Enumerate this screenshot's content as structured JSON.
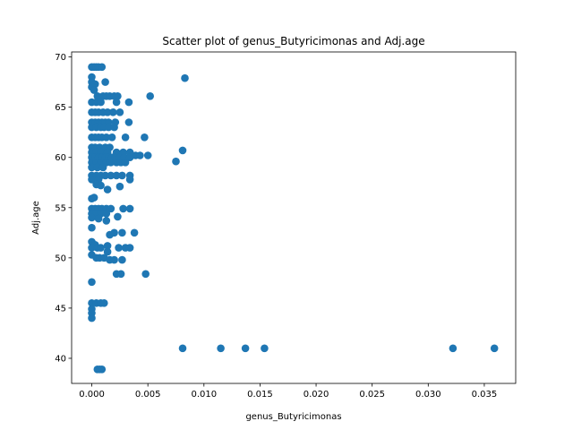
{
  "chart_data": {
    "type": "scatter",
    "title": "Scatter plot of genus_Butyricimonas and Adj.age",
    "xlabel": "genus_Butyricimonas",
    "ylabel": "Adj.age",
    "xlim": [
      -0.0018,
      0.0378
    ],
    "ylim": [
      37.5,
      70.5
    ],
    "xticks": [
      0.0,
      0.005,
      0.01,
      0.015,
      0.02,
      0.025,
      0.03,
      0.035
    ],
    "xtick_labels": [
      "0.000",
      "0.005",
      "0.010",
      "0.015",
      "0.020",
      "0.025",
      "0.030",
      "0.035"
    ],
    "yticks": [
      40,
      45,
      50,
      55,
      60,
      65,
      70
    ],
    "ytick_labels": [
      "40",
      "45",
      "50",
      "55",
      "60",
      "65",
      "70"
    ],
    "color": "#1f77b4",
    "grid": false,
    "points": [
      {
        "x": 0.0,
        "y": 69.0
      },
      {
        "x": 0.0002,
        "y": 69.0
      },
      {
        "x": 0.0004,
        "y": 69.0
      },
      {
        "x": 0.0006,
        "y": 69.0
      },
      {
        "x": 0.0009,
        "y": 69.0
      },
      {
        "x": 0.0,
        "y": 68.0
      },
      {
        "x": 0.0,
        "y": 67.5
      },
      {
        "x": 0.0003,
        "y": 67.3
      },
      {
        "x": 0.0,
        "y": 67.0
      },
      {
        "x": 0.0002,
        "y": 66.7
      },
      {
        "x": 0.0012,
        "y": 67.5
      },
      {
        "x": 0.0005,
        "y": 66.1
      },
      {
        "x": 0.001,
        "y": 66.1
      },
      {
        "x": 0.0013,
        "y": 66.1
      },
      {
        "x": 0.0016,
        "y": 66.1
      },
      {
        "x": 0.002,
        "y": 66.1
      },
      {
        "x": 0.0023,
        "y": 66.1
      },
      {
        "x": 0.0052,
        "y": 66.1
      },
      {
        "x": 0.0083,
        "y": 67.9
      },
      {
        "x": 0.0,
        "y": 65.5
      },
      {
        "x": 0.0004,
        "y": 65.5
      },
      {
        "x": 0.0008,
        "y": 65.5
      },
      {
        "x": 0.0022,
        "y": 65.5
      },
      {
        "x": 0.0033,
        "y": 65.5
      },
      {
        "x": 0.0,
        "y": 64.5
      },
      {
        "x": 0.0003,
        "y": 64.5
      },
      {
        "x": 0.0006,
        "y": 64.5
      },
      {
        "x": 0.001,
        "y": 64.5
      },
      {
        "x": 0.0014,
        "y": 64.5
      },
      {
        "x": 0.0019,
        "y": 64.5
      },
      {
        "x": 0.0025,
        "y": 64.5
      },
      {
        "x": 0.0,
        "y": 63.5
      },
      {
        "x": 0.0003,
        "y": 63.5
      },
      {
        "x": 0.0006,
        "y": 63.5
      },
      {
        "x": 0.0009,
        "y": 63.5
      },
      {
        "x": 0.0012,
        "y": 63.5
      },
      {
        "x": 0.0015,
        "y": 63.5
      },
      {
        "x": 0.0021,
        "y": 63.5
      },
      {
        "x": 0.0033,
        "y": 63.5
      },
      {
        "x": 0.0,
        "y": 63.0
      },
      {
        "x": 0.0004,
        "y": 63.0
      },
      {
        "x": 0.0008,
        "y": 63.0
      },
      {
        "x": 0.0011,
        "y": 63.0
      },
      {
        "x": 0.0015,
        "y": 63.0
      },
      {
        "x": 0.002,
        "y": 63.0
      },
      {
        "x": 0.0,
        "y": 62.0
      },
      {
        "x": 0.0003,
        "y": 62.0
      },
      {
        "x": 0.0006,
        "y": 62.0
      },
      {
        "x": 0.0009,
        "y": 62.0
      },
      {
        "x": 0.0013,
        "y": 62.0
      },
      {
        "x": 0.0018,
        "y": 62.0
      },
      {
        "x": 0.003,
        "y": 62.0
      },
      {
        "x": 0.0047,
        "y": 62.0
      },
      {
        "x": 0.0,
        "y": 61.0
      },
      {
        "x": 0.0003,
        "y": 61.0
      },
      {
        "x": 0.0007,
        "y": 61.0
      },
      {
        "x": 0.0012,
        "y": 61.0
      },
      {
        "x": 0.0016,
        "y": 61.0
      },
      {
        "x": 0.0,
        "y": 60.5
      },
      {
        "x": 0.0004,
        "y": 60.5
      },
      {
        "x": 0.0008,
        "y": 60.5
      },
      {
        "x": 0.0014,
        "y": 60.5
      },
      {
        "x": 0.0022,
        "y": 60.5
      },
      {
        "x": 0.0028,
        "y": 60.5
      },
      {
        "x": 0.0034,
        "y": 60.5
      },
      {
        "x": 0.0081,
        "y": 60.7
      },
      {
        "x": 0.0,
        "y": 60.0
      },
      {
        "x": 0.0003,
        "y": 60.0
      },
      {
        "x": 0.0006,
        "y": 60.0
      },
      {
        "x": 0.0009,
        "y": 60.0
      },
      {
        "x": 0.0012,
        "y": 60.0
      },
      {
        "x": 0.0015,
        "y": 60.0
      },
      {
        "x": 0.0018,
        "y": 60.0
      },
      {
        "x": 0.0021,
        "y": 60.0
      },
      {
        "x": 0.0025,
        "y": 60.0
      },
      {
        "x": 0.0029,
        "y": 60.0
      },
      {
        "x": 0.0034,
        "y": 60.0
      },
      {
        "x": 0.0039,
        "y": 60.2
      },
      {
        "x": 0.0043,
        "y": 60.2
      },
      {
        "x": 0.005,
        "y": 60.2
      },
      {
        "x": 0.0,
        "y": 59.5
      },
      {
        "x": 0.0004,
        "y": 59.5
      },
      {
        "x": 0.0008,
        "y": 59.5
      },
      {
        "x": 0.0013,
        "y": 59.5
      },
      {
        "x": 0.0017,
        "y": 59.5
      },
      {
        "x": 0.0022,
        "y": 59.5
      },
      {
        "x": 0.0026,
        "y": 59.5
      },
      {
        "x": 0.003,
        "y": 59.5
      },
      {
        "x": 0.0075,
        "y": 59.6
      },
      {
        "x": 0.0,
        "y": 59.0
      },
      {
        "x": 0.0005,
        "y": 59.0
      },
      {
        "x": 0.001,
        "y": 59.0
      },
      {
        "x": 0.0,
        "y": 58.2
      },
      {
        "x": 0.0004,
        "y": 58.2
      },
      {
        "x": 0.0008,
        "y": 58.2
      },
      {
        "x": 0.0012,
        "y": 58.2
      },
      {
        "x": 0.0017,
        "y": 58.2
      },
      {
        "x": 0.0022,
        "y": 58.2
      },
      {
        "x": 0.0027,
        "y": 58.2
      },
      {
        "x": 0.0034,
        "y": 58.2
      },
      {
        "x": 0.0,
        "y": 57.8
      },
      {
        "x": 0.0006,
        "y": 57.8
      },
      {
        "x": 0.0034,
        "y": 57.8
      },
      {
        "x": 0.0004,
        "y": 57.3
      },
      {
        "x": 0.0008,
        "y": 57.2
      },
      {
        "x": 0.0014,
        "y": 56.8
      },
      {
        "x": 0.0025,
        "y": 57.1
      },
      {
        "x": 0.0,
        "y": 55.9
      },
      {
        "x": 0.0002,
        "y": 56.0
      },
      {
        "x": 0.0,
        "y": 54.9
      },
      {
        "x": 0.0003,
        "y": 54.9
      },
      {
        "x": 0.0006,
        "y": 54.9
      },
      {
        "x": 0.0009,
        "y": 54.9
      },
      {
        "x": 0.0013,
        "y": 54.9
      },
      {
        "x": 0.0017,
        "y": 54.9
      },
      {
        "x": 0.0028,
        "y": 54.9
      },
      {
        "x": 0.0034,
        "y": 54.9
      },
      {
        "x": 0.0,
        "y": 54.4
      },
      {
        "x": 0.0004,
        "y": 54.4
      },
      {
        "x": 0.0008,
        "y": 54.4
      },
      {
        "x": 0.0013,
        "y": 54.4
      },
      {
        "x": 0.0023,
        "y": 54.1
      },
      {
        "x": 0.0,
        "y": 54.0
      },
      {
        "x": 0.0006,
        "y": 53.9
      },
      {
        "x": 0.0013,
        "y": 53.7
      },
      {
        "x": 0.0,
        "y": 53.0
      },
      {
        "x": 0.0016,
        "y": 52.3
      },
      {
        "x": 0.002,
        "y": 52.5
      },
      {
        "x": 0.0027,
        "y": 52.5
      },
      {
        "x": 0.0038,
        "y": 52.5
      },
      {
        "x": 0.0,
        "y": 51.6
      },
      {
        "x": 0.0003,
        "y": 51.3
      },
      {
        "x": 0.0,
        "y": 51.0
      },
      {
        "x": 0.0005,
        "y": 51.0
      },
      {
        "x": 0.0008,
        "y": 51.0
      },
      {
        "x": 0.0014,
        "y": 51.2
      },
      {
        "x": 0.0014,
        "y": 50.6
      },
      {
        "x": 0.0024,
        "y": 51.0
      },
      {
        "x": 0.003,
        "y": 51.0
      },
      {
        "x": 0.0034,
        "y": 51.0
      },
      {
        "x": 0.0,
        "y": 50.3
      },
      {
        "x": 0.0004,
        "y": 50.0
      },
      {
        "x": 0.0007,
        "y": 50.0
      },
      {
        "x": 0.0011,
        "y": 50.0
      },
      {
        "x": 0.0016,
        "y": 49.8
      },
      {
        "x": 0.002,
        "y": 49.8
      },
      {
        "x": 0.0027,
        "y": 49.8
      },
      {
        "x": 0.0022,
        "y": 48.4
      },
      {
        "x": 0.0026,
        "y": 48.4
      },
      {
        "x": 0.0048,
        "y": 48.4
      },
      {
        "x": 0.0,
        "y": 47.6
      },
      {
        "x": 0.0,
        "y": 45.5
      },
      {
        "x": 0.0004,
        "y": 45.5
      },
      {
        "x": 0.0008,
        "y": 45.5
      },
      {
        "x": 0.0011,
        "y": 45.5
      },
      {
        "x": 0.0,
        "y": 44.9
      },
      {
        "x": 0.0,
        "y": 44.5
      },
      {
        "x": 0.0,
        "y": 44.0
      },
      {
        "x": 0.0005,
        "y": 38.9
      },
      {
        "x": 0.0007,
        "y": 38.9
      },
      {
        "x": 0.0009,
        "y": 38.9
      },
      {
        "x": 0.0081,
        "y": 41.0
      },
      {
        "x": 0.0115,
        "y": 41.0
      },
      {
        "x": 0.0137,
        "y": 41.0
      },
      {
        "x": 0.0154,
        "y": 41.0
      },
      {
        "x": 0.0322,
        "y": 41.0
      },
      {
        "x": 0.0359,
        "y": 41.0
      }
    ]
  }
}
